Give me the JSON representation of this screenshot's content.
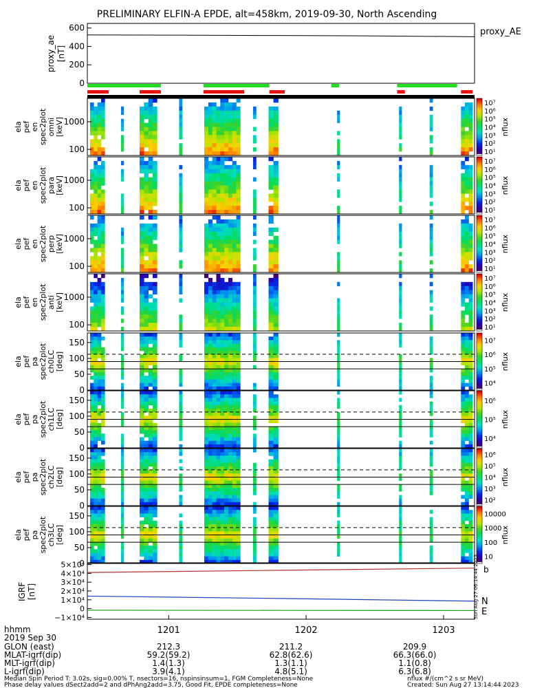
{
  "title": "PRELIMINARY ELFIN-A EPDE, alt=458km, 2019-09-30, North Ascending",
  "colors": {
    "ae_line": "#000000",
    "science_bar": "#22dd22",
    "epd_bar": "#ee1111",
    "black_bar": "#000000",
    "grf_b": "#b03030",
    "grf_n": "#2040c0",
    "grf_e": "#10a010",
    "n_label": "#2040c0",
    "e_label": "#10a010"
  },
  "x_ticks": [
    "1201",
    "1202",
    "1203"
  ],
  "chart_data": [
    {
      "type": "line",
      "panel": "proxy_ae",
      "ylabel": "proxy_ae [nT]",
      "legend": "proxy_AE",
      "ylim": [
        0,
        650
      ],
      "yticks": [
        "0",
        "200",
        "400",
        "600"
      ],
      "x": [
        0.0,
        0.25,
        0.5,
        0.75,
        1.0
      ],
      "values": [
        525,
        522,
        518,
        514,
        505
      ]
    },
    {
      "type": "heatmap",
      "panel": "en_omni",
      "ylabel": [
        "ela",
        "pef",
        "en",
        "spec2plot",
        "omni",
        "[keV]"
      ],
      "yticks": [
        "100",
        "1000"
      ],
      "ylim": [
        60,
        7000
      ],
      "log_y": true,
      "cbar_label": "nflux",
      "cbar_ticks": [
        "10¹",
        "10²",
        "10³",
        "10⁴",
        "10⁵",
        "10⁶",
        "10⁷"
      ],
      "clim_exp": [
        0.5,
        7
      ]
    },
    {
      "type": "heatmap",
      "panel": "en_para",
      "ylabel": [
        "ela",
        "pef",
        "en",
        "spec2plot",
        "para",
        "[keV]"
      ],
      "yticks": [
        "100",
        "1000"
      ],
      "ylim": [
        60,
        7000
      ],
      "log_y": true,
      "cbar_label": "nflux",
      "cbar_ticks": [
        "10¹",
        "10²",
        "10³",
        "10⁴",
        "10⁵",
        "10⁶",
        "10⁷"
      ],
      "clim_exp": [
        0.5,
        7
      ]
    },
    {
      "type": "heatmap",
      "panel": "en_perp",
      "ylabel": [
        "ela",
        "pef",
        "en",
        "spec2plot",
        "perp",
        "[keV]"
      ],
      "yticks": [
        "100",
        "1000"
      ],
      "ylim": [
        60,
        7000
      ],
      "log_y": true,
      "cbar_label": "nflux",
      "cbar_ticks": [
        "10¹",
        "10²",
        "10³",
        "10⁴",
        "10⁵",
        "10⁶",
        "10⁷"
      ],
      "clim_exp": [
        0.5,
        7
      ]
    },
    {
      "type": "heatmap",
      "panel": "en_anti",
      "ylabel": [
        "ela",
        "pef",
        "en",
        "spec2plot",
        "anti",
        "[keV]"
      ],
      "yticks": [
        "100",
        "1000"
      ],
      "ylim": [
        60,
        7000
      ],
      "log_y": true,
      "cbar_label": "nflux",
      "cbar_ticks": [
        "10¹",
        "10²",
        "10³",
        "10⁴",
        "10⁵",
        "10⁶",
        "10⁷"
      ],
      "clim_exp": [
        0.5,
        7
      ]
    },
    {
      "type": "heatmap",
      "panel": "pa_ch0",
      "ylabel": [
        "ela",
        "pef",
        "pa",
        "spec2plot",
        "ch0LC",
        "[deg]"
      ],
      "yticks": [
        "0",
        "50",
        "100",
        "150"
      ],
      "ylim": [
        0,
        180
      ],
      "log_y": false,
      "cbar_label": "nflux",
      "cbar_ticks": [
        "10⁴",
        "10⁵",
        "10⁶",
        "10⁷"
      ],
      "clim_exp": [
        3.5,
        7
      ],
      "hlines_solid": [
        67,
        90
      ],
      "hlines_dashed": [
        113
      ]
    },
    {
      "type": "heatmap",
      "panel": "pa_ch1",
      "ylabel": [
        "ela",
        "pef",
        "pa",
        "spec2plot",
        "ch1LC",
        "[deg]"
      ],
      "yticks": [
        "0",
        "50",
        "100",
        "150"
      ],
      "ylim": [
        0,
        180
      ],
      "log_y": false,
      "cbar_label": "nflux",
      "cbar_ticks": [
        "10⁴",
        "10⁵",
        "10⁶"
      ],
      "clim_exp": [
        3.5,
        6.5
      ],
      "hlines_solid": [
        67,
        90
      ],
      "hlines_dashed": [
        113
      ]
    },
    {
      "type": "heatmap",
      "panel": "pa_ch2",
      "ylabel": [
        "ela",
        "pef",
        "pa",
        "spec2plot",
        "ch2LC",
        "[deg]"
      ],
      "yticks": [
        "0",
        "50",
        "100",
        "150"
      ],
      "ylim": [
        0,
        180
      ],
      "log_y": false,
      "cbar_label": "nflux",
      "cbar_ticks": [
        "10²",
        "10³",
        "10⁴",
        "10⁵",
        "10⁶"
      ],
      "clim_exp": [
        1.5,
        6
      ],
      "hlines_solid": [
        67,
        90
      ],
      "hlines_dashed": [
        113
      ]
    },
    {
      "type": "heatmap",
      "panel": "pa_ch3",
      "ylabel": [
        "ela",
        "pef",
        "pa",
        "spec2plot",
        "ch3LC",
        "[deg]"
      ],
      "yticks": [
        "0",
        "50",
        "100",
        "150"
      ],
      "ylim": [
        0,
        180
      ],
      "log_y": false,
      "cbar_label": "nflux",
      "cbar_ticks": [
        "10",
        "100",
        "1000",
        "10000"
      ],
      "clim_exp": [
        1,
        4.3
      ],
      "hlines_solid": [
        67,
        90
      ],
      "hlines_dashed": [
        113
      ]
    },
    {
      "type": "line",
      "panel": "igrf",
      "ylabel": [
        "IGRF",
        "[nT]"
      ],
      "yticks": [
        "−1×10⁴",
        "0",
        "1×10⁴",
        "2×10⁴",
        "3×10⁴",
        "4×10⁴",
        "5×10⁴"
      ],
      "ylim": [
        -12000,
        52000
      ],
      "series": [
        {
          "name": "b",
          "x": [
            0.0,
            0.5,
            1.0
          ],
          "values": [
            41000,
            43500,
            46000
          ]
        },
        {
          "name": "N",
          "x": [
            0.0,
            0.5,
            1.0
          ],
          "values": [
            14200,
            11500,
            8500
          ]
        },
        {
          "name": "E",
          "x": [
            0.0,
            0.5,
            1.0
          ],
          "values": [
            -1800,
            -2000,
            -2200
          ]
        }
      ],
      "side_text": "Sun Aug 27 06:14:44 2023"
    }
  ],
  "footer": {
    "labels": [
      "hhmm",
      "2019 Sep 30",
      "GLON (east)",
      "MLAT-igrf(dip)",
      "MLT-igrf(dip)",
      "L-igrf(dip)"
    ],
    "col1": [
      "212.3",
      "59.2(59.2)",
      "1.4(1.3)",
      "3.9(4.1)"
    ],
    "col2": [
      "211.2",
      "62.8(62.6)",
      "1.3(1.1)",
      "4.8(5.1)"
    ],
    "col3": [
      "209.9",
      "66.3(66.0)",
      "1.1(0.8)",
      "6.3(6.8)"
    ],
    "note1": "Median Spin Period T: 3.02s, sig=0.00% T, nsectors=16, nspinsinsum=1, FGM Completeness=None",
    "note2": "Phase delay values dSect2add=2 and dPhAng2add=3.75, Good Fit, EPDE completeness=None",
    "units": "nflux #/(cm^2 s sr MeV)",
    "created": "Created: Sun Aug 27 13:14:44 2023"
  }
}
